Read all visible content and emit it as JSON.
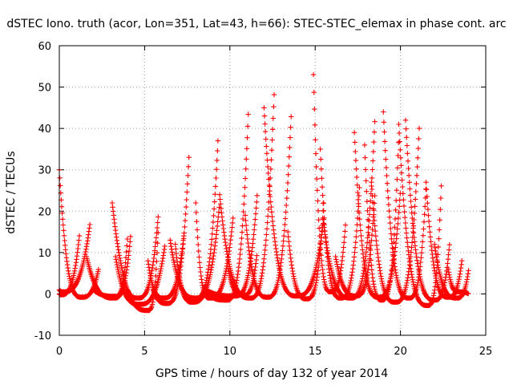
{
  "chart_data": {
    "type": "scatter",
    "title": "dSTEC Iono. truth (acor, Lon=351, Lat=43, h=66): STEC-STEC_elemax in phase cont. arc",
    "xlabel": "GPS time / hours of day 132 of year 2014",
    "ylabel": "dSTEC  / TECUs",
    "xlim": [
      0,
      25
    ],
    "ylim": [
      -10,
      60
    ],
    "xticks": [
      "0",
      "5",
      "10",
      "15",
      "20",
      "25"
    ],
    "yticks": [
      "-10",
      "0",
      "10",
      "20",
      "30",
      "40",
      "50",
      "60"
    ],
    "grid": true,
    "marker": "plus",
    "marker_color": "#ff0000",
    "series": [
      {
        "arc": [
          0.0,
          2.3
        ],
        "min_x": 1.3,
        "min_y": -0.8,
        "start_y": 30,
        "end_y": 6
      },
      {
        "arc": [
          0.0,
          1.8
        ],
        "min_x": 0.2,
        "min_y": 0.5,
        "start_y": 1,
        "end_y": 17
      },
      {
        "arc": [
          0.0,
          1.2
        ],
        "min_x": 0.1,
        "min_y": -0.2,
        "start_y": 0,
        "end_y": 15
      },
      {
        "arc": [
          1.6,
          4.2
        ],
        "min_x": 3.2,
        "min_y": -1.0,
        "start_y": 9,
        "end_y": 15
      },
      {
        "arc": [
          2.0,
          4.0
        ],
        "min_x": 3.3,
        "min_y": -0.6,
        "start_y": 1,
        "end_y": 14
      },
      {
        "arc": [
          3.1,
          5.8
        ],
        "min_x": 5.2,
        "min_y": -4.0,
        "start_y": 22,
        "end_y": 16
      },
      {
        "arc": [
          3.3,
          6.2
        ],
        "min_x": 4.7,
        "min_y": -2.5,
        "start_y": 9,
        "end_y": 12
      },
      {
        "arc": [
          4.0,
          5.8
        ],
        "min_x": 4.6,
        "min_y": -1.0,
        "start_y": 1,
        "end_y": 19
      },
      {
        "arc": [
          5.2,
          7.3
        ],
        "min_x": 6.1,
        "min_y": -1.0,
        "start_y": 8,
        "end_y": 14
      },
      {
        "arc": [
          5.5,
          7.6
        ],
        "min_x": 6.3,
        "min_y": -2.3,
        "start_y": 1,
        "end_y": 33
      },
      {
        "arc": [
          6.5,
          9.3
        ],
        "min_x": 8.0,
        "min_y": -1.0,
        "start_y": 13,
        "end_y": 37
      },
      {
        "arc": [
          6.8,
          9.4
        ],
        "min_x": 7.8,
        "min_y": -2.0,
        "start_y": 12,
        "end_y": 22
      },
      {
        "arc": [
          8.0,
          10.2
        ],
        "min_x": 8.8,
        "min_y": -1.0,
        "start_y": 22,
        "end_y": 19
      },
      {
        "arc": [
          8.5,
          11.1
        ],
        "min_x": 9.8,
        "min_y": -1.5,
        "start_y": 1,
        "end_y": 46
      },
      {
        "arc": [
          8.6,
          11.6
        ],
        "min_x": 10.3,
        "min_y": -0.5,
        "start_y": 1,
        "end_y": 24
      },
      {
        "arc": [
          9.4,
          12.6
        ],
        "min_x": 11.2,
        "min_y": -1.0,
        "start_y": 24,
        "end_y": 49
      },
      {
        "arc": [
          9.9,
          11.6
        ],
        "min_x": 10.8,
        "min_y": -0.3,
        "start_y": 6,
        "end_y": 10
      },
      {
        "arc": [
          10.9,
          13.6
        ],
        "min_x": 12.2,
        "min_y": -0.8,
        "start_y": 19,
        "end_y": 44
      },
      {
        "arc": [
          12.0,
          15.5
        ],
        "min_x": 13.9,
        "min_y": -0.5,
        "start_y": 45,
        "end_y": 18
      },
      {
        "arc": [
          13.4,
          15.5
        ],
        "min_x": 14.5,
        "min_y": -1.2,
        "start_y": 15,
        "end_y": 22
      },
      {
        "arc": [
          14.9,
          16.8
        ],
        "min_x": 15.9,
        "min_y": 0.5,
        "start_y": 53,
        "end_y": 18
      },
      {
        "arc": [
          15.3,
          17.6
        ],
        "min_x": 16.5,
        "min_y": -1.0,
        "start_y": 35,
        "end_y": 26
      },
      {
        "arc": [
          15.5,
          18.5
        ],
        "min_x": 17.1,
        "min_y": -1.0,
        "start_y": 17,
        "end_y": 42
      },
      {
        "arc": [
          16.2,
          18.5
        ],
        "min_x": 17.4,
        "min_y": -0.5,
        "start_y": 9,
        "end_y": 24
      },
      {
        "arc": [
          17.3,
          20.0
        ],
        "min_x": 18.7,
        "min_y": -0.8,
        "start_y": 39,
        "end_y": 25
      },
      {
        "arc": [
          17.9,
          19.9
        ],
        "min_x": 18.9,
        "min_y": -1.5,
        "start_y": 36,
        "end_y": 38
      },
      {
        "arc": [
          18.3,
          21.1
        ],
        "min_x": 19.7,
        "min_y": -2.0,
        "start_y": 27,
        "end_y": 40
      },
      {
        "arc": [
          19.0,
          21.5
        ],
        "min_x": 20.5,
        "min_y": -1.0,
        "start_y": 44,
        "end_y": 26
      },
      {
        "arc": [
          19.9,
          22.4
        ],
        "min_x": 21.6,
        "min_y": -2.8,
        "start_y": 41,
        "end_y": 27
      },
      {
        "arc": [
          20.3,
          22.9
        ],
        "min_x": 22.0,
        "min_y": -1.5,
        "start_y": 42,
        "end_y": 13
      },
      {
        "arc": [
          21.5,
          23.6
        ],
        "min_x": 22.8,
        "min_y": -0.8,
        "start_y": 27,
        "end_y": 8
      },
      {
        "arc": [
          22.0,
          24.0
        ],
        "min_x": 23.3,
        "min_y": -1.0,
        "start_y": 12,
        "end_y": 6
      },
      {
        "arc": [
          22.8,
          24.0
        ],
        "min_x": 23.4,
        "min_y": 0.5,
        "start_y": 6,
        "end_y": 0
      }
    ]
  }
}
